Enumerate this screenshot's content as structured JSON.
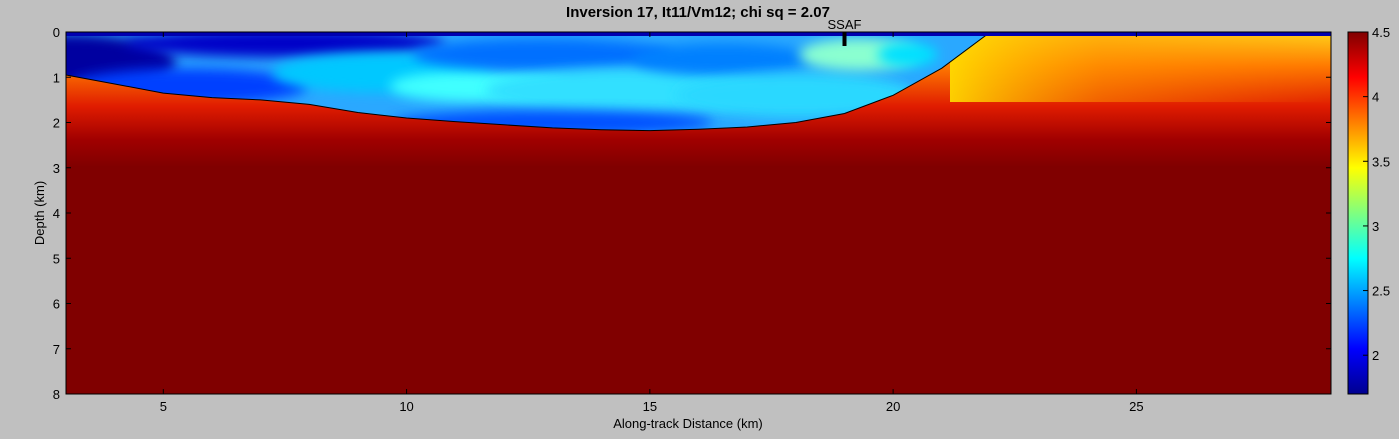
{
  "chart_data": {
    "type": "heatmap",
    "title": "Inversion 17, It11/Vm12; chi sq = 2.07",
    "xlabel": "Along-track Distance (km)",
    "ylabel": "Depth (km)",
    "xlim": [
      3,
      29
    ],
    "ylim": [
      0,
      8
    ],
    "y_reversed": true,
    "xticks": [
      5,
      10,
      15,
      20,
      25
    ],
    "yticks": [
      0,
      1,
      2,
      3,
      4,
      5,
      6,
      7,
      8
    ],
    "colorbar": {
      "clim": [
        1.7,
        4.5
      ],
      "ticks": [
        2,
        2.5,
        3,
        3.5,
        4,
        4.5
      ],
      "colormap": "jet"
    },
    "annotation": {
      "label": "SSAF",
      "x": 19.0,
      "depth": 0.2
    },
    "boundary": {
      "x": [
        3,
        4,
        5,
        6,
        7,
        8,
        9,
        10,
        11,
        12,
        13,
        14,
        15,
        16,
        17,
        18,
        19,
        20,
        21,
        22
      ],
      "depth": [
        0.95,
        1.15,
        1.35,
        1.45,
        1.5,
        1.6,
        1.78,
        1.9,
        1.98,
        2.05,
        2.12,
        2.16,
        2.18,
        2.15,
        2.1,
        2.0,
        1.8,
        1.4,
        0.8,
        0.0
      ]
    },
    "colors": {
      "background": "#c0c0c0",
      "deep": "#800000"
    }
  }
}
